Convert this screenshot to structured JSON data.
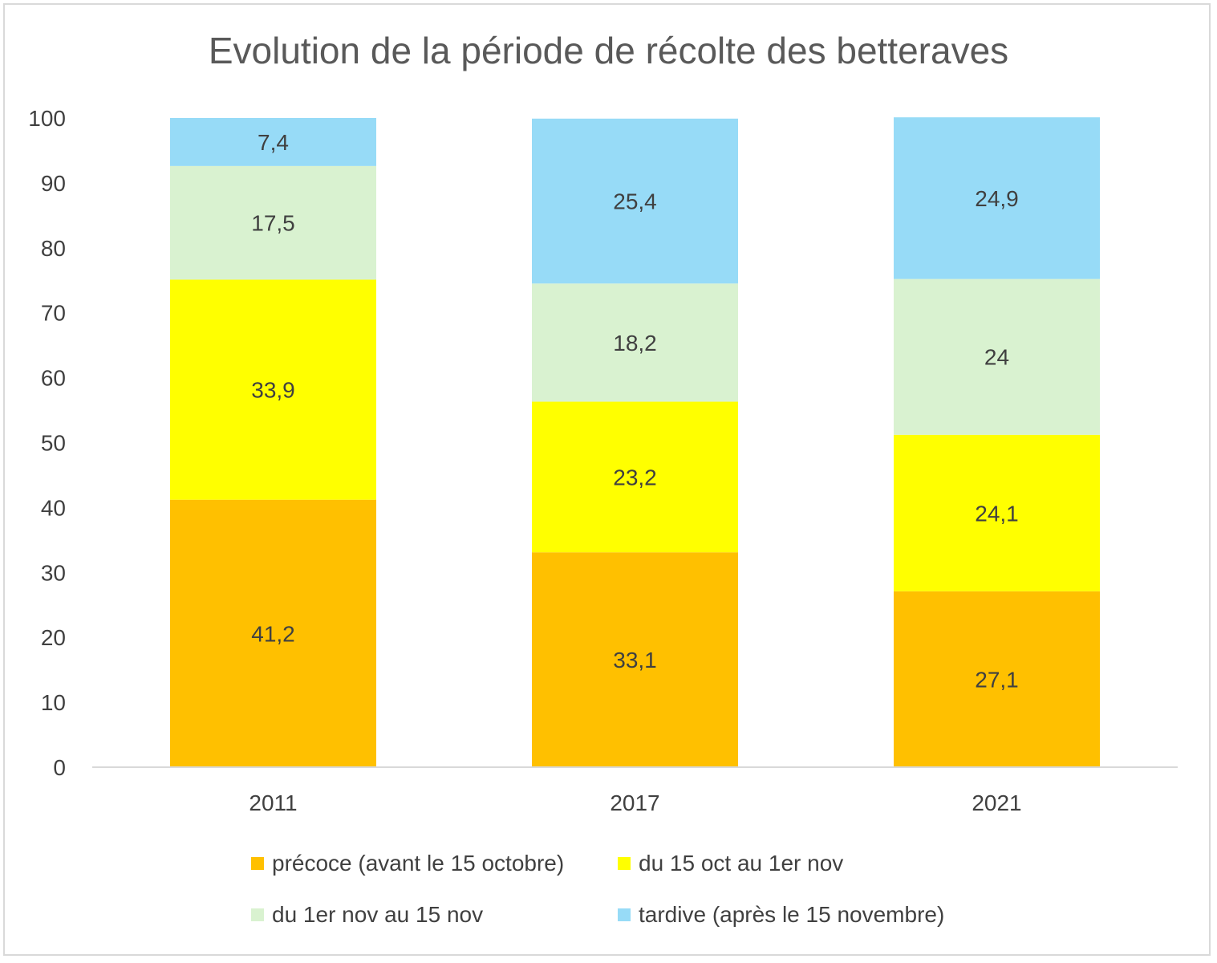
{
  "chart_data": {
    "type": "bar",
    "stacked": true,
    "title": "Evolution de la période de récolte des betteraves",
    "xlabel": "",
    "ylabel": "",
    "categories": [
      "2011",
      "2017",
      "2021"
    ],
    "ylim": [
      0,
      100
    ],
    "yticks": [
      0,
      10,
      20,
      30,
      40,
      50,
      60,
      70,
      80,
      90,
      100
    ],
    "grid": false,
    "legend_position": "bottom",
    "series": [
      {
        "name": "précoce (avant le 15 octobre)",
        "color": "#FFC000",
        "values": [
          41.2,
          33.1,
          27.1
        ],
        "labels": [
          "41,2",
          "33,1",
          "27,1"
        ]
      },
      {
        "name": "du 15 oct au 1er nov",
        "color": "#FFFF00",
        "values": [
          33.9,
          23.2,
          24.1
        ],
        "labels": [
          "33,9",
          "23,2",
          "24,1"
        ]
      },
      {
        "name": "du 1er nov au 15 nov",
        "color": "#D9F2D0",
        "values": [
          17.5,
          18.2,
          24
        ],
        "labels": [
          "17,5",
          "18,2",
          "24"
        ]
      },
      {
        "name": "tardive (après le 15 novembre)",
        "color": "#97DBF7",
        "values": [
          7.4,
          25.4,
          24.9
        ],
        "labels": [
          "7,4",
          "25,4",
          "24,9"
        ]
      }
    ]
  }
}
